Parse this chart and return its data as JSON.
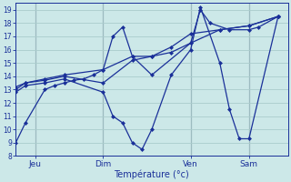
{
  "xlabel": "Température (°c)",
  "background_color": "#cce8e8",
  "grid_color": "#aacccc",
  "line_color": "#1a3099",
  "vline_color": "#556688",
  "xlim": [
    0,
    28
  ],
  "ylim": [
    8,
    19.5
  ],
  "yticks": [
    8,
    9,
    10,
    11,
    12,
    13,
    14,
    15,
    16,
    17,
    18,
    19
  ],
  "xtick_positions": [
    2,
    9,
    18,
    24
  ],
  "xtick_labels": [
    "Jeu",
    "Dim",
    "Ven",
    "Sam"
  ],
  "vlines": [
    2,
    9,
    18,
    24
  ],
  "series": [
    {
      "x": [
        0,
        1,
        3,
        4,
        5,
        6,
        7,
        8,
        9,
        10,
        11,
        12,
        14,
        18,
        19,
        20,
        22,
        24,
        25,
        27
      ],
      "y": [
        9.0,
        10.5,
        13.0,
        13.3,
        13.5,
        13.7,
        13.8,
        14.1,
        14.5,
        17.0,
        17.7,
        15.5,
        14.1,
        16.5,
        19.0,
        18.0,
        17.5,
        17.5,
        17.7,
        18.5
      ]
    },
    {
      "x": [
        0,
        1,
        3,
        5,
        9,
        10,
        11,
        12,
        13,
        14,
        16,
        18,
        19,
        21,
        22,
        23,
        24,
        27
      ],
      "y": [
        12.8,
        13.3,
        13.5,
        13.8,
        12.8,
        11.0,
        10.5,
        9.0,
        8.5,
        10.0,
        14.1,
        16.0,
        19.2,
        15.0,
        11.5,
        9.3,
        9.3,
        18.5
      ]
    },
    {
      "x": [
        0,
        1,
        3,
        5,
        9,
        12,
        14,
        16,
        18,
        21,
        24,
        27
      ],
      "y": [
        13.0,
        13.5,
        13.7,
        14.0,
        13.5,
        15.2,
        15.5,
        15.8,
        16.5,
        17.5,
        17.8,
        18.5
      ]
    },
    {
      "x": [
        0,
        1,
        3,
        5,
        9,
        12,
        14,
        16,
        18,
        21,
        24,
        27
      ],
      "y": [
        13.2,
        13.5,
        13.8,
        14.1,
        14.5,
        15.5,
        15.5,
        16.2,
        17.2,
        17.5,
        17.8,
        18.5
      ]
    }
  ]
}
